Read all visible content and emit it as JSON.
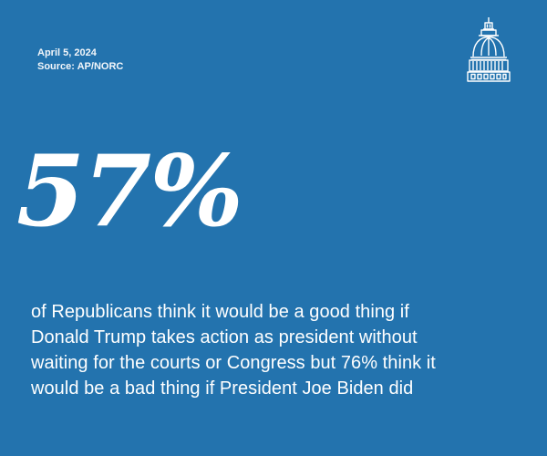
{
  "header": {
    "date": "April 5, 2024",
    "source": "Source: AP/NORC"
  },
  "logo": {
    "icon": "capitol-dome-icon"
  },
  "stat": {
    "value": "57%"
  },
  "statement": {
    "lines": [
      "of Republicans think it would be a good thing if",
      "Donald Trump takes action as president without",
      "waiting for the courts or Congress but 76% think it",
      "would be a bad thing if President Joe Biden did"
    ]
  },
  "colors": {
    "background": "#2373ae",
    "text": "#ffffff"
  }
}
